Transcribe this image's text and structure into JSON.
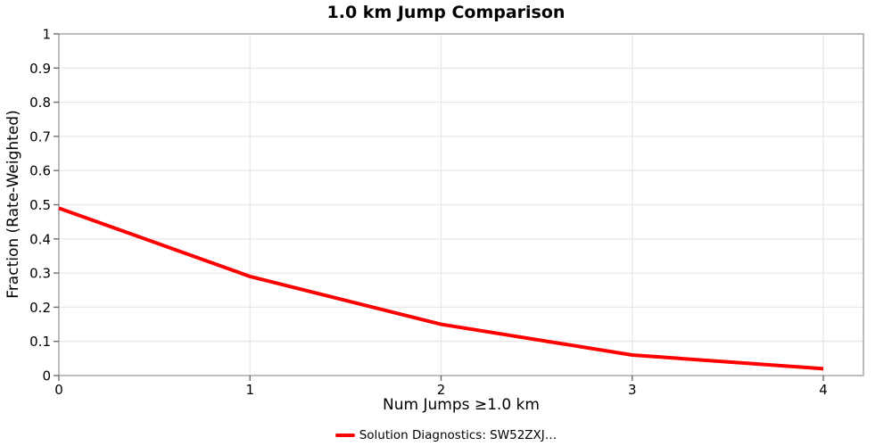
{
  "chart_data": {
    "type": "line",
    "title": "1.0 km Jump Comparison",
    "xlabel": "Num Jumps ≥1.0 km",
    "ylabel": "Fraction (Rate-Weighted)",
    "x": [
      0,
      1,
      2,
      3,
      4
    ],
    "series": [
      {
        "name": "Solution Diagnostics: SW52ZXJ…",
        "values": [
          0.49,
          0.29,
          0.15,
          0.06,
          0.02
        ],
        "color": "#ff0000"
      }
    ],
    "xlim": [
      0,
      4.21
    ],
    "ylim": [
      0,
      1
    ],
    "x_ticks": [
      "0",
      "1",
      "2",
      "3",
      "4"
    ],
    "y_ticks": [
      "0",
      "0.1",
      "0.2",
      "0.3",
      "0.4",
      "0.5",
      "0.6",
      "0.7",
      "0.8",
      "0.9",
      "1"
    ],
    "grid": true,
    "legend_position": "bottom-center",
    "colors": {
      "grid": "#e8e8e8",
      "border": "#adadad",
      "tick": "#6e6e6e",
      "text": "#000000",
      "background": "#ffffff"
    }
  }
}
